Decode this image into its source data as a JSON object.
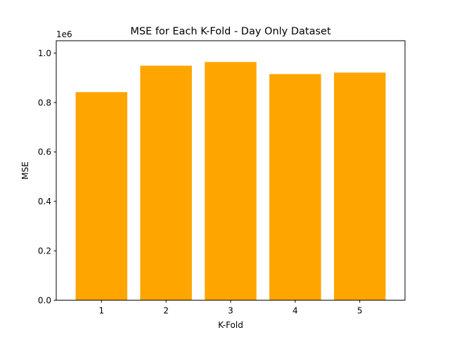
{
  "chart_data": {
    "type": "bar",
    "title": "MSE for Each K-Fold - Day Only Dataset",
    "xlabel": "K-Fold",
    "ylabel": "MSE",
    "y_scale_label": "1e6",
    "categories": [
      "1",
      "2",
      "3",
      "4",
      "5"
    ],
    "values": [
      842000,
      949000,
      964000,
      915000,
      921000
    ],
    "ylim": [
      0,
      1050000
    ],
    "yticks": [
      0,
      200000,
      400000,
      600000,
      800000,
      1000000
    ],
    "ytick_labels": [
      "0.0",
      "0.2",
      "0.4",
      "0.6",
      "0.8",
      "1.0"
    ],
    "bar_color": "#ffa500",
    "grid": false,
    "legend": "none"
  }
}
